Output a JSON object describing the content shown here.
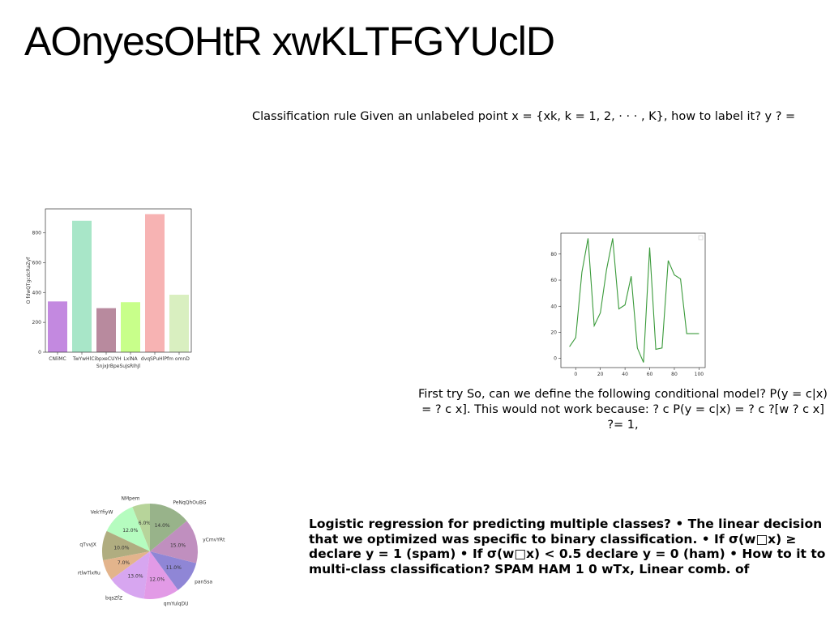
{
  "slide": {
    "title": "AOnyesOHtR xwKLTFGYUclD",
    "para1": "Classification rule Given an unlabeled point x = {xk, k = 1, 2, · · · , K}, how to label it? y ? =",
    "para2": "First try So, can we define the following conditional model? P(y = c|x) = ? c x]. This would not work because: ? c P(y = c|x) = ? c ?[w ? c x] ?= 1,",
    "para3": "Logistic regression for predicting multiple classes? • The linear decision that we optimized was specific to binary classification. • If σ(w□x) ≥ declare y = 1 (spam) • If σ(w□x) < 0.5 declare y = 0 (ham) • How to it to multi-class classification? SPAM HAM 1 0 wTx, Linear comb. of"
  },
  "chart_data": [
    {
      "type": "bar",
      "categories": [
        "CNliMC",
        "TwYwHl",
        "CibpxeCUYH",
        "LxlNA",
        "dvqSPuHlPf",
        "m omnD"
      ],
      "values": [
        340,
        880,
        295,
        335,
        925,
        385
      ],
      "colors": [
        "#c389e0",
        "#a8e6c8",
        "#b88a9e",
        "#c8ff8a",
        "#f7b3b3",
        "#d9efc0"
      ],
      "xlabel": "SnjxJrBpeSuJsRIhJl",
      "ylabel": "O fdwQTgcdcRaZyf",
      "yticks": [
        0,
        200,
        400,
        600,
        800
      ],
      "ylim": [
        0,
        960
      ]
    },
    {
      "type": "line",
      "x": [
        -5,
        0,
        5,
        10,
        15,
        20,
        25,
        30,
        35,
        40,
        45,
        50,
        55,
        60,
        65,
        70,
        75,
        80,
        85,
        90,
        95,
        100
      ],
      "y": [
        9,
        16,
        66,
        92,
        25,
        35,
        68,
        92,
        38,
        41,
        63,
        8,
        -3,
        85,
        7,
        8,
        75,
        64,
        61,
        19,
        19,
        19
      ],
      "color": "#3a9a3a",
      "xticks": [
        0,
        20,
        40,
        60,
        80,
        100
      ],
      "yticks": [
        0,
        20,
        40,
        60,
        80
      ],
      "xlim": [
        -12,
        105
      ],
      "ylim": [
        -7,
        96
      ]
    },
    {
      "type": "pie",
      "labels": [
        "NMpem",
        "VekYfiyW",
        "qTvvJX",
        "rtlwTlxRu",
        "bqsZfZ",
        "qmYulqDU",
        "panSsa",
        "yCmvYRt",
        "PeNqQhOuBG"
      ],
      "values": [
        6.0,
        12.0,
        10.0,
        7.0,
        13.0,
        12.0,
        11.0,
        15.0,
        14.0
      ],
      "pct_labels": [
        "6.0%",
        "12.0%",
        "10.0%",
        "7.0%",
        "13.0%",
        "12.0%",
        "11.0%",
        "15.0%",
        "14.0%"
      ],
      "colors": [
        "#b7d49a",
        "#b5fcbf",
        "#b0ad80",
        "#e3b48c",
        "#d7a6f0",
        "#e29ae6",
        "#8f86d6",
        "#c08fbf",
        "#98b38a"
      ]
    }
  ]
}
